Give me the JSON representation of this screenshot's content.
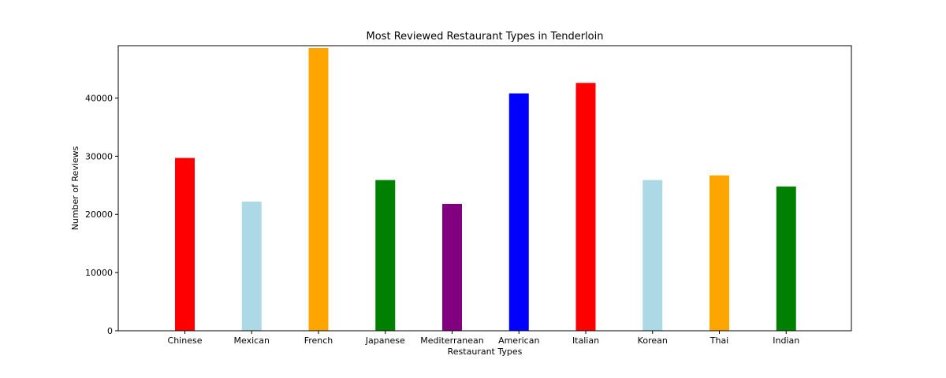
{
  "chart_data": {
    "type": "bar",
    "title": "Most Reviewed Restaurant Types in Tenderloin",
    "xlabel": "Restaurant Types",
    "ylabel": "Number of Reviews",
    "categories": [
      "Chinese",
      "Mexican",
      "French",
      "Japanese",
      "Mediterranean",
      "American",
      "Italian",
      "Korean",
      "Thai",
      "Indian"
    ],
    "values": [
      29700,
      22200,
      48600,
      25900,
      21800,
      40800,
      42600,
      25900,
      26700,
      24800
    ],
    "colors": [
      "#ff0000",
      "#add8e6",
      "#ffa500",
      "#008000",
      "#800080",
      "#0000ff",
      "#ff0000",
      "#add8e6",
      "#ffa500",
      "#008000"
    ],
    "ylim": [
      0,
      49000
    ],
    "yticks": [
      0,
      10000,
      20000,
      30000,
      40000
    ],
    "grid": false,
    "legend": false
  }
}
